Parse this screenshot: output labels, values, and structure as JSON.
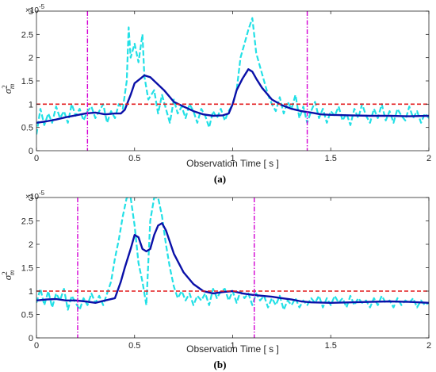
{
  "chart_data": [
    {
      "type": "line",
      "panel_label": "(a)",
      "xlabel": "Observation Time [ s ]",
      "ylabel": "σ",
      "ylabel_sup": "2",
      "ylabel_sub": "m",
      "y_multiplier": "×10",
      "y_multiplier_exp": "-5",
      "xlim": [
        0,
        2
      ],
      "ylim": [
        0,
        3
      ],
      "xticks": [
        "0",
        "0.5",
        "1",
        "1.5",
        "2"
      ],
      "yticks": [
        "0",
        "0.5",
        "1",
        "1.5",
        "2",
        "2.5",
        "3"
      ],
      "threshold": 1.0,
      "vlines": [
        0.26,
        1.38
      ],
      "colors": {
        "raw": "#22e0e6",
        "smooth": "#0a10a8",
        "threshold": "#e31a1c",
        "markers": "#d400d4"
      },
      "series": [
        {
          "style": "dashed",
          "x": [
            0,
            0.02,
            0.04,
            0.06,
            0.08,
            0.1,
            0.12,
            0.14,
            0.16,
            0.18,
            0.2,
            0.22,
            0.24,
            0.26,
            0.28,
            0.3,
            0.32,
            0.34,
            0.36,
            0.38,
            0.4,
            0.42,
            0.44,
            0.46,
            0.47,
            0.48,
            0.5,
            0.52,
            0.54,
            0.55,
            0.57,
            0.6,
            0.62,
            0.64,
            0.66,
            0.68,
            0.7,
            0.72,
            0.74,
            0.76,
            0.78,
            0.8,
            0.82,
            0.84,
            0.86,
            0.88,
            0.9,
            0.92,
            0.94,
            0.96,
            0.98,
            1.0,
            1.02,
            1.04,
            1.06,
            1.08,
            1.1,
            1.12,
            1.14,
            1.16,
            1.18,
            1.2,
            1.22,
            1.24,
            1.26,
            1.28,
            1.3,
            1.32,
            1.34,
            1.36,
            1.38,
            1.4,
            1.42,
            1.44,
            1.46,
            1.48,
            1.5,
            1.52,
            1.54,
            1.56,
            1.58,
            1.6,
            1.62,
            1.64,
            1.66,
            1.68,
            1.7,
            1.72,
            1.74,
            1.76,
            1.78,
            1.8,
            1.82,
            1.84,
            1.86,
            1.88,
            1.9,
            1.92,
            1.94,
            1.96,
            1.98,
            2.0
          ],
          "y": [
            0.35,
            0.9,
            0.55,
            0.8,
            0.6,
            0.95,
            0.7,
            0.85,
            0.6,
            1.0,
            0.75,
            0.9,
            0.65,
            0.85,
            0.95,
            0.7,
            0.85,
            1.0,
            0.6,
            0.85,
            0.7,
            1.0,
            0.9,
            1.5,
            2.65,
            2.0,
            2.3,
            1.9,
            2.5,
            1.6,
            1.1,
            1.3,
            0.8,
            1.2,
            0.9,
            0.6,
            1.1,
            0.8,
            0.95,
            0.7,
            1.0,
            0.85,
            0.6,
            0.9,
            0.75,
            0.5,
            0.85,
            0.7,
            0.9,
            0.65,
            0.85,
            1.0,
            1.3,
            2.0,
            2.3,
            2.6,
            2.85,
            2.1,
            1.8,
            1.5,
            1.2,
            1.0,
            0.85,
            1.15,
            0.8,
            1.05,
            0.9,
            1.2,
            0.7,
            0.95,
            0.6,
            0.85,
            1.05,
            0.7,
            0.9,
            0.6,
            0.85,
            0.75,
            0.95,
            0.65,
            0.8,
            0.55,
            0.9,
            0.7,
            1.0,
            0.75,
            0.6,
            0.9,
            0.7,
            1.0,
            0.65,
            0.85,
            0.6,
            0.9,
            0.75,
            0.65,
            0.95,
            0.7,
            0.85,
            0.6,
            0.8,
            0.7
          ]
        },
        {
          "style": "solid",
          "x": [
            0,
            0.05,
            0.1,
            0.15,
            0.2,
            0.25,
            0.3,
            0.35,
            0.4,
            0.43,
            0.45,
            0.48,
            0.5,
            0.53,
            0.55,
            0.58,
            0.6,
            0.65,
            0.7,
            0.75,
            0.8,
            0.85,
            0.9,
            0.95,
            0.98,
            1.0,
            1.02,
            1.05,
            1.08,
            1.1,
            1.12,
            1.15,
            1.2,
            1.25,
            1.3,
            1.35,
            1.4,
            1.45,
            1.5,
            1.6,
            1.7,
            1.8,
            1.9,
            2.0
          ],
          "y": [
            0.6,
            0.63,
            0.67,
            0.72,
            0.76,
            0.8,
            0.82,
            0.78,
            0.8,
            0.8,
            0.88,
            1.2,
            1.45,
            1.55,
            1.62,
            1.58,
            1.5,
            1.3,
            1.05,
            0.95,
            0.85,
            0.78,
            0.75,
            0.76,
            0.8,
            1.0,
            1.3,
            1.55,
            1.75,
            1.7,
            1.55,
            1.35,
            1.1,
            0.98,
            0.9,
            0.85,
            0.82,
            0.78,
            0.77,
            0.76,
            0.75,
            0.75,
            0.74,
            0.75
          ]
        }
      ]
    },
    {
      "type": "line",
      "panel_label": "(b)",
      "xlabel": "Observation Time [ s ]",
      "ylabel": "σ",
      "ylabel_sup": "2",
      "ylabel_sub": "m",
      "y_multiplier": "×10",
      "y_multiplier_exp": "-5",
      "xlim": [
        0,
        2
      ],
      "ylim": [
        0,
        3
      ],
      "xticks": [
        "0",
        "0.5",
        "1",
        "1.5",
        "2"
      ],
      "yticks": [
        "0",
        "0.5",
        "1",
        "1.5",
        "2",
        "2.5",
        "3"
      ],
      "threshold": 1.0,
      "vlines": [
        0.21,
        1.11
      ],
      "colors": {
        "raw": "#22e0e6",
        "smooth": "#0a10a8",
        "threshold": "#e31a1c",
        "markers": "#d400d4"
      },
      "series": [
        {
          "style": "dashed",
          "x": [
            0,
            0.02,
            0.04,
            0.06,
            0.08,
            0.1,
            0.12,
            0.14,
            0.16,
            0.18,
            0.2,
            0.22,
            0.24,
            0.26,
            0.28,
            0.3,
            0.32,
            0.34,
            0.36,
            0.38,
            0.4,
            0.42,
            0.44,
            0.46,
            0.48,
            0.5,
            0.52,
            0.54,
            0.56,
            0.58,
            0.6,
            0.62,
            0.64,
            0.66,
            0.68,
            0.7,
            0.72,
            0.74,
            0.76,
            0.78,
            0.8,
            0.82,
            0.84,
            0.86,
            0.88,
            0.9,
            0.92,
            0.94,
            0.96,
            0.98,
            1.0,
            1.02,
            1.04,
            1.06,
            1.08,
            1.1,
            1.12,
            1.14,
            1.16,
            1.18,
            1.2,
            1.22,
            1.24,
            1.26,
            1.28,
            1.3,
            1.32,
            1.34,
            1.36,
            1.38,
            1.4,
            1.42,
            1.44,
            1.46,
            1.48,
            1.5,
            1.52,
            1.54,
            1.56,
            1.58,
            1.6,
            1.62,
            1.64,
            1.66,
            1.68,
            1.7,
            1.72,
            1.74,
            1.76,
            1.78,
            1.8,
            1.82,
            1.84,
            1.86,
            1.88,
            1.9,
            1.92,
            1.94,
            1.96,
            1.98,
            2.0
          ],
          "y": [
            0.75,
            1.05,
            0.7,
            1.0,
            0.65,
            0.95,
            0.8,
            1.05,
            0.6,
            0.9,
            0.75,
            0.6,
            0.85,
            0.7,
            0.95,
            0.75,
            0.9,
            0.7,
            0.95,
            1.2,
            1.7,
            2.1,
            2.6,
            3.0,
            3.0,
            2.4,
            1.6,
            1.2,
            0.7,
            2.5,
            3.0,
            3.0,
            2.6,
            2.0,
            1.5,
            1.1,
            0.85,
            1.0,
            0.8,
            0.95,
            0.7,
            0.9,
            0.8,
            0.95,
            0.7,
            1.05,
            0.85,
            1.0,
            1.05,
            0.8,
            1.0,
            0.75,
            1.0,
            0.85,
            0.95,
            0.7,
            0.95,
            0.8,
            0.9,
            0.65,
            0.85,
            0.7,
            0.9,
            0.6,
            0.8,
            0.7,
            0.85,
            0.65,
            0.8,
            0.7,
            0.85,
            0.75,
            0.9,
            0.65,
            0.85,
            0.7,
            0.9,
            0.75,
            0.85,
            0.65,
            0.9,
            0.7,
            0.85,
            0.75,
            0.8,
            0.65,
            0.85,
            0.7,
            0.9,
            0.75,
            0.8,
            0.65,
            0.85,
            0.7,
            0.8,
            0.75,
            0.85,
            0.65,
            0.8,
            0.7,
            0.75
          ]
        },
        {
          "style": "solid",
          "x": [
            0,
            0.05,
            0.1,
            0.15,
            0.2,
            0.25,
            0.3,
            0.35,
            0.4,
            0.43,
            0.45,
            0.48,
            0.5,
            0.52,
            0.54,
            0.56,
            0.58,
            0.6,
            0.62,
            0.64,
            0.66,
            0.7,
            0.75,
            0.8,
            0.85,
            0.9,
            0.95,
            1.0,
            1.05,
            1.1,
            1.15,
            1.2,
            1.25,
            1.3,
            1.35,
            1.4,
            1.5,
            1.6,
            1.7,
            1.8,
            1.9,
            2.0
          ],
          "y": [
            0.8,
            0.82,
            0.83,
            0.8,
            0.8,
            0.78,
            0.75,
            0.8,
            0.85,
            1.2,
            1.5,
            1.9,
            2.2,
            2.15,
            1.9,
            1.85,
            1.9,
            2.2,
            2.4,
            2.45,
            2.3,
            1.8,
            1.4,
            1.15,
            1.0,
            0.95,
            0.98,
            1.0,
            0.95,
            0.92,
            0.9,
            0.88,
            0.85,
            0.82,
            0.78,
            0.76,
            0.75,
            0.76,
            0.77,
            0.78,
            0.77,
            0.75
          ]
        }
      ]
    }
  ]
}
